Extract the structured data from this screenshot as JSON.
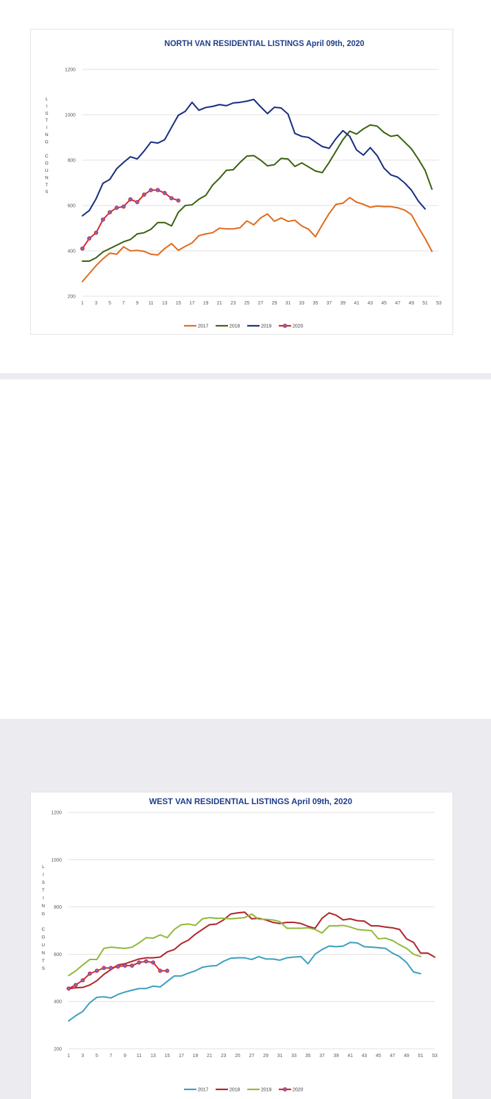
{
  "colors": {
    "page_background": "#ececf0",
    "title": "#1f3d8a",
    "north_2017": "#e06c1d",
    "north_2018": "#3b6310",
    "north_2019": "#1a2e80",
    "west_2017": "#3ea0c0",
    "west_2018": "#b0262b",
    "west_2019": "#90ba3c",
    "series_2020": "#d8232a",
    "marker_2020": "#6e6ecc"
  },
  "chart_data": [
    {
      "type": "line",
      "title": "NORTH VAN RESIDENTIAL LISTINGS April 09th, 2020",
      "ylabel": "LISTING COUNTS",
      "xlabel": "",
      "xlim": [
        1,
        53
      ],
      "ylim": [
        200,
        1200
      ],
      "x_ticks": [
        "1",
        "3",
        "5",
        "7",
        "9",
        "11",
        "13",
        "15",
        "17",
        "19",
        "21",
        "23",
        "25",
        "27",
        "29",
        "31",
        "33",
        "35",
        "37",
        "39",
        "41",
        "43",
        "45",
        "47",
        "49",
        "51",
        "53"
      ],
      "y_ticks": [
        "200",
        "400",
        "600",
        "800",
        "1000",
        "1200"
      ],
      "grid": true,
      "legend_position": "bottom",
      "series": [
        {
          "name": "2017",
          "color": "#e06c1d",
          "markers": false,
          "values": [
            265,
            300,
            335,
            365,
            390,
            385,
            418,
            400,
            402,
            398,
            385,
            382,
            410,
            432,
            402,
            420,
            435,
            467,
            475,
            480,
            500,
            497,
            497,
            502,
            532,
            515,
            545,
            563,
            530,
            545,
            530,
            535,
            510,
            495,
            462,
            515,
            565,
            605,
            610,
            635,
            615,
            605,
            592,
            598,
            595,
            595,
            590,
            580,
            560,
            505,
            455,
            398
          ]
        },
        {
          "name": "2018",
          "color": "#3b6310",
          "markers": false,
          "values": [
            355,
            355,
            370,
            395,
            410,
            425,
            440,
            450,
            475,
            480,
            495,
            525,
            525,
            510,
            570,
            600,
            603,
            628,
            645,
            690,
            720,
            755,
            758,
            790,
            818,
            820,
            800,
            775,
            780,
            808,
            805,
            772,
            788,
            770,
            752,
            745,
            790,
            840,
            890,
            928,
            915,
            938,
            955,
            950,
            922,
            905,
            910,
            880,
            850,
            805,
            755,
            672
          ]
        },
        {
          "name": "2019",
          "color": "#1a2e80",
          "markers": false,
          "values": [
            555,
            578,
            630,
            698,
            715,
            762,
            790,
            815,
            805,
            840,
            880,
            875,
            890,
            945,
            998,
            1015,
            1055,
            1020,
            1032,
            1037,
            1045,
            1040,
            1052,
            1055,
            1060,
            1068,
            1035,
            1005,
            1033,
            1030,
            1003,
            918,
            905,
            900,
            880,
            860,
            852,
            895,
            930,
            905,
            845,
            822,
            855,
            820,
            765,
            735,
            725,
            700,
            668,
            620,
            585
          ]
        },
        {
          "name": "2020",
          "color": "#d8232a",
          "markers": true,
          "values": [
            410,
            455,
            480,
            538,
            570,
            590,
            595,
            627,
            615,
            648,
            668,
            668,
            655,
            632,
            622
          ]
        }
      ]
    },
    {
      "type": "line",
      "title": "WEST VAN RESIDENTIAL LISTINGS April 09th, 2020",
      "ylabel": "LISTING COUNTS",
      "xlabel": "",
      "xlim": [
        1,
        53
      ],
      "ylim": [
        200,
        1200
      ],
      "x_ticks": [
        "1",
        "3",
        "5",
        "7",
        "9",
        "11",
        "13",
        "15",
        "17",
        "19",
        "21",
        "23",
        "25",
        "27",
        "29",
        "31",
        "33",
        "35",
        "37",
        "39",
        "41",
        "43",
        "45",
        "47",
        "49",
        "51",
        "53"
      ],
      "y_ticks": [
        "200",
        "400",
        "600",
        "800",
        "1000",
        "1200"
      ],
      "grid": true,
      "legend_position": "bottom",
      "series": [
        {
          "name": "2017",
          "color": "#3ea0c0",
          "markers": false,
          "values": [
            318,
            340,
            358,
            395,
            418,
            420,
            415,
            430,
            440,
            448,
            455,
            455,
            465,
            462,
            485,
            508,
            508,
            520,
            530,
            545,
            550,
            552,
            570,
            583,
            585,
            585,
            578,
            590,
            580,
            580,
            575,
            585,
            588,
            590,
            560,
            600,
            620,
            635,
            632,
            635,
            650,
            648,
            632,
            630,
            628,
            625,
            605,
            590,
            565,
            525,
            518
          ]
        },
        {
          "name": "2018",
          "color": "#b0262b",
          "markers": false,
          "values": [
            455,
            458,
            460,
            470,
            488,
            515,
            535,
            555,
            560,
            570,
            580,
            585,
            585,
            588,
            610,
            620,
            645,
            660,
            685,
            705,
            725,
            728,
            745,
            770,
            775,
            778,
            750,
            752,
            745,
            735,
            730,
            735,
            735,
            730,
            718,
            710,
            752,
            775,
            765,
            745,
            750,
            742,
            740,
            720,
            720,
            715,
            712,
            705,
            665,
            650,
            605,
            605,
            588
          ]
        },
        {
          "name": "2019",
          "color": "#90ba3c",
          "markers": false,
          "values": [
            510,
            530,
            555,
            578,
            578,
            625,
            630,
            627,
            625,
            630,
            648,
            670,
            668,
            682,
            670,
            705,
            725,
            728,
            722,
            750,
            755,
            752,
            752,
            750,
            752,
            755,
            770,
            748,
            748,
            745,
            738,
            710,
            710,
            710,
            712,
            705,
            690,
            720,
            720,
            722,
            715,
            705,
            702,
            700,
            665,
            668,
            658,
            640,
            625,
            600,
            590
          ]
        },
        {
          "name": "2020",
          "color": "#d8232a",
          "markers": true,
          "values": [
            455,
            470,
            490,
            518,
            530,
            542,
            542,
            548,
            552,
            552,
            565,
            570,
            565,
            530,
            530
          ]
        }
      ]
    }
  ]
}
